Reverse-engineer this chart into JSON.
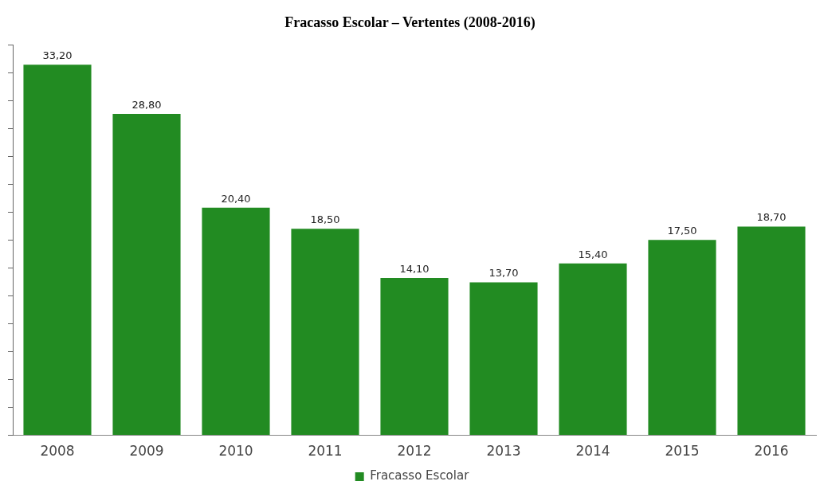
{
  "chart_data": {
    "type": "bar",
    "title": "Fracasso Escolar – Vertentes (2008-2016)",
    "categories": [
      "2008",
      "2009",
      "2010",
      "2011",
      "2012",
      "2013",
      "2014",
      "2015",
      "2016"
    ],
    "series": [
      {
        "name": "Fracasso Escolar",
        "color": "#228b22",
        "values": [
          33.2,
          28.8,
          20.4,
          18.5,
          14.1,
          13.7,
          15.4,
          17.5,
          18.7
        ],
        "value_labels": [
          "33,20",
          "28,80",
          "20,40",
          "18,50",
          "14,10",
          "13,70",
          "15,40",
          "17,50",
          "18,70"
        ]
      }
    ],
    "ylim": [
      0,
      35
    ],
    "yticks": [
      {
        "value": 0,
        "label": null
      },
      {
        "value": 2.5,
        "label": null
      },
      {
        "value": 5,
        "label": null
      },
      {
        "value": 7.5,
        "label": null
      },
      {
        "value": 10,
        "label": null
      },
      {
        "value": 12.5,
        "label": null
      },
      {
        "value": 15,
        "label": null
      },
      {
        "value": 17.5,
        "label": null
      },
      {
        "value": 20,
        "label": null
      },
      {
        "value": 22.5,
        "label": null
      },
      {
        "value": 25,
        "label": null
      },
      {
        "value": 27.5,
        "label": null
      },
      {
        "value": 30,
        "label": null
      },
      {
        "value": 32.5,
        "label": null
      },
      {
        "value": 35,
        "label": null
      }
    ],
    "tick_labels": "x",
    "grid": false,
    "legend": "bottom"
  }
}
